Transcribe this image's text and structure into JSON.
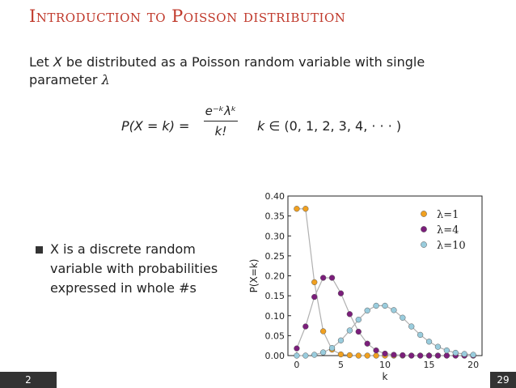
{
  "slide": {
    "title": "Introduction to Poisson distribution",
    "intro_prefix": "Let ",
    "intro_var": "X",
    "intro_text": " be distributed as a Poisson random variable with single parameter ",
    "intro_lambda": "λ",
    "formula": {
      "lhs": "P(X = k) =",
      "numerator": "e⁻ᵏλᵏ",
      "denominator": "k!",
      "rhs_var": "k",
      "rhs_set": " ∈ (0, 1, 2, 3, 4, · · · )"
    },
    "bullet": "X is a discrete random variable with probabilities expressed in whole #s",
    "footer_left": "2",
    "footer_right": "29"
  },
  "chart_data": {
    "type": "line",
    "xlabel": "k",
    "ylabel": "P(X=k)",
    "xlim": [
      -1,
      21
    ],
    "ylim": [
      0,
      0.4
    ],
    "xticks": [
      0,
      5,
      10,
      15,
      20
    ],
    "yticks": [
      0.0,
      0.05,
      0.1,
      0.15,
      0.2,
      0.25,
      0.3,
      0.35,
      0.4
    ],
    "ytick_labels": [
      "0.00",
      "0.05",
      "0.10",
      "0.15",
      "0.20",
      "0.25",
      "0.30",
      "0.35",
      "0.40"
    ],
    "grid": false,
    "legend": "top-right",
    "line_color": "#b0b0b0",
    "x": [
      0,
      1,
      2,
      3,
      4,
      5,
      6,
      7,
      8,
      9,
      10,
      11,
      12,
      13,
      14,
      15,
      16,
      17,
      18,
      19,
      20
    ],
    "series": [
      {
        "name": "λ=1",
        "color": "#f0a020",
        "values": [
          0.368,
          0.368,
          0.184,
          0.061,
          0.015,
          0.003,
          0.001,
          0,
          0,
          0,
          0,
          0,
          0,
          0,
          0,
          0,
          0,
          0,
          0,
          0,
          0
        ]
      },
      {
        "name": "λ=4",
        "color": "#7b1e7b",
        "values": [
          0.018,
          0.073,
          0.147,
          0.195,
          0.195,
          0.156,
          0.104,
          0.06,
          0.03,
          0.013,
          0.005,
          0.002,
          0.001,
          0,
          0,
          0,
          0,
          0,
          0,
          0,
          0
        ]
      },
      {
        "name": "λ=10",
        "color": "#99ccdd",
        "values": [
          0.0,
          0.0,
          0.002,
          0.008,
          0.019,
          0.038,
          0.063,
          0.09,
          0.113,
          0.125,
          0.125,
          0.114,
          0.095,
          0.073,
          0.052,
          0.035,
          0.022,
          0.013,
          0.007,
          0.004,
          0.002
        ]
      }
    ]
  }
}
